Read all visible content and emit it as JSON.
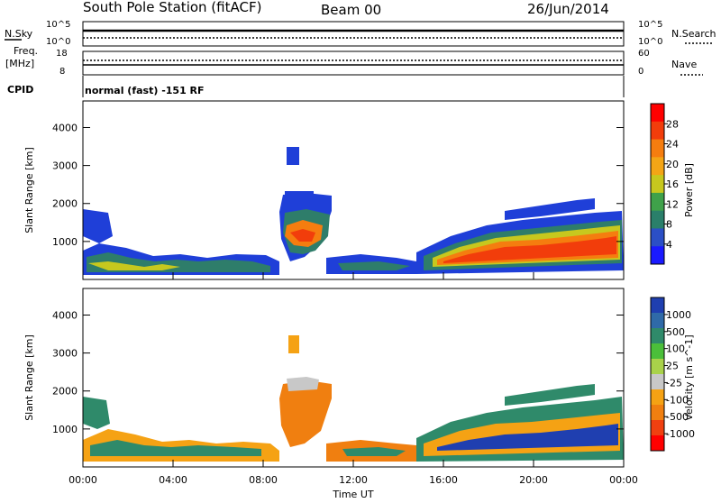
{
  "header": {
    "station": "South Pole Station (fitACF)",
    "beam": "Beam 00",
    "date": "26/Jun/2014"
  },
  "noise_panel": {
    "left_label": "N.Sky",
    "right_label": "N.Search",
    "left_ticks": [
      "10^5",
      "10^0"
    ],
    "right_ticks": [
      "10^5",
      "10^0"
    ]
  },
  "freq_panel": {
    "left_label_line1": "Freq.",
    "left_label_line2": "[MHz]",
    "right_label": "Nave",
    "left_ticks": [
      "18",
      "8"
    ],
    "right_ticks": [
      "60",
      "0"
    ]
  },
  "cpid": {
    "label": "CPID",
    "value": "normal (fast) -151 RF"
  },
  "chart_data": [
    {
      "type": "heatmap",
      "title": "",
      "ylabel": "Slant Range [km]",
      "xlabel": "",
      "y_ticks": [
        "1000",
        "2000",
        "3000",
        "4000"
      ],
      "colorbar": {
        "label": "Power [dB]",
        "ticks": [
          "4",
          "8",
          "12",
          "16",
          "20",
          "24",
          "28"
        ],
        "colors": [
          "#1a1aff",
          "#2b4fc6",
          "#2a7f6a",
          "#3fa14a",
          "#c7c81e",
          "#f3a516",
          "#f57d0f",
          "#f23d0b",
          "#ff0000"
        ]
      }
    },
    {
      "type": "heatmap",
      "title": "",
      "ylabel": "Slant Range [km]",
      "xlabel": "Time UT",
      "y_ticks": [
        "1000",
        "2000",
        "3000",
        "4000"
      ],
      "x_ticks": [
        "00:00",
        "04:00",
        "08:00",
        "12:00",
        "16:00",
        "20:00",
        "00:00"
      ],
      "colorbar": {
        "label": "Velocity [m s^-1]",
        "ticks": [
          "1000",
          "500",
          "100",
          "25",
          "-25",
          "-100",
          "-500",
          "-1000"
        ],
        "colors": [
          "#1f3fb0",
          "#2f6aa8",
          "#2f8a6a",
          "#4bbf3a",
          "#a9d24a",
          "#c8c8c8",
          "#f5a214",
          "#f07f10",
          "#f04010",
          "#ff0000"
        ]
      }
    }
  ]
}
